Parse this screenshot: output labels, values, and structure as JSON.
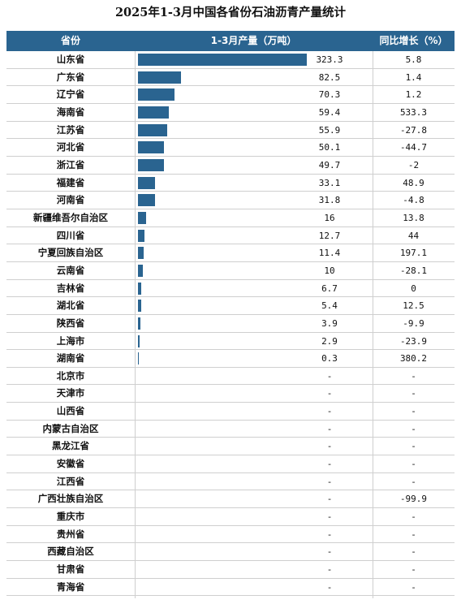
{
  "chart_data": {
    "type": "table",
    "title": "2025年1-3月中国各省份石油沥青产量统计",
    "columns": [
      "省份",
      "1-3月产量（万吨）",
      "同比增长（%）"
    ],
    "bar_max": 323.3,
    "rows": [
      {
        "province": "山东省",
        "output": 323.3,
        "output_text": "323.3",
        "growth": "5.8"
      },
      {
        "province": "广东省",
        "output": 82.5,
        "output_text": "82.5",
        "growth": "1.4"
      },
      {
        "province": "辽宁省",
        "output": 70.3,
        "output_text": "70.3",
        "growth": "1.2"
      },
      {
        "province": "海南省",
        "output": 59.4,
        "output_text": "59.4",
        "growth": "533.3"
      },
      {
        "province": "江苏省",
        "output": 55.9,
        "output_text": "55.9",
        "growth": "-27.8"
      },
      {
        "province": "河北省",
        "output": 50.1,
        "output_text": "50.1",
        "growth": "-44.7"
      },
      {
        "province": "浙江省",
        "output": 49.7,
        "output_text": "49.7",
        "growth": "-2"
      },
      {
        "province": "福建省",
        "output": 33.1,
        "output_text": "33.1",
        "growth": "48.9"
      },
      {
        "province": "河南省",
        "output": 31.8,
        "output_text": "31.8",
        "growth": "-4.8"
      },
      {
        "province": "新疆维吾尔自治区",
        "output": 16,
        "output_text": "16",
        "growth": "13.8"
      },
      {
        "province": "四川省",
        "output": 12.7,
        "output_text": "12.7",
        "growth": "44"
      },
      {
        "province": "宁夏回族自治区",
        "output": 11.4,
        "output_text": "11.4",
        "growth": "197.1"
      },
      {
        "province": "云南省",
        "output": 10,
        "output_text": "10",
        "growth": "-28.1"
      },
      {
        "province": "吉林省",
        "output": 6.7,
        "output_text": "6.7",
        "growth": "0"
      },
      {
        "province": "湖北省",
        "output": 5.4,
        "output_text": "5.4",
        "growth": "12.5"
      },
      {
        "province": "陕西省",
        "output": 3.9,
        "output_text": "3.9",
        "growth": "-9.9"
      },
      {
        "province": "上海市",
        "output": 2.9,
        "output_text": "2.9",
        "growth": "-23.9"
      },
      {
        "province": "湖南省",
        "output": 0.3,
        "output_text": "0.3",
        "growth": "380.2"
      },
      {
        "province": "北京市",
        "output": null,
        "output_text": "-",
        "growth": "-"
      },
      {
        "province": "天津市",
        "output": null,
        "output_text": "-",
        "growth": "-"
      },
      {
        "province": "山西省",
        "output": null,
        "output_text": "-",
        "growth": "-"
      },
      {
        "province": "内蒙古自治区",
        "output": null,
        "output_text": "-",
        "growth": "-"
      },
      {
        "province": "黑龙江省",
        "output": null,
        "output_text": "-",
        "growth": "-"
      },
      {
        "province": "安徽省",
        "output": null,
        "output_text": "-",
        "growth": "-"
      },
      {
        "province": "江西省",
        "output": null,
        "output_text": "-",
        "growth": "-"
      },
      {
        "province": "广西壮族自治区",
        "output": null,
        "output_text": "-",
        "growth": "-99.9"
      },
      {
        "province": "重庆市",
        "output": null,
        "output_text": "-",
        "growth": "-"
      },
      {
        "province": "贵州省",
        "output": null,
        "output_text": "-",
        "growth": "-"
      },
      {
        "province": "西藏自治区",
        "output": null,
        "output_text": "-",
        "growth": "-"
      },
      {
        "province": "甘肃省",
        "output": null,
        "output_text": "-",
        "growth": "-"
      },
      {
        "province": "青海省",
        "output": null,
        "output_text": "-",
        "growth": "-"
      }
    ],
    "colors": {
      "header_bg": "#2a6490",
      "bar": "#2a6490",
      "row_border": "#cfcfcf"
    }
  }
}
